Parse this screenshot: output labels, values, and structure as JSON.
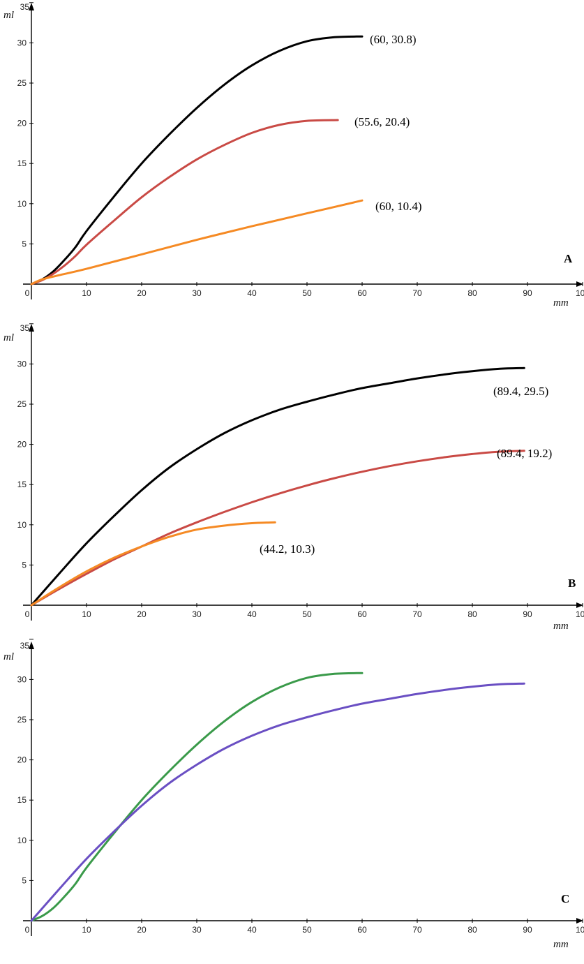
{
  "chart_data": [
    {
      "type": "line",
      "panel_label": "A",
      "xlabel": "mm",
      "ylabel": "ml",
      "xlim": [
        0,
        100
      ],
      "ylim": [
        0,
        35
      ],
      "xticks": [
        "0",
        "10",
        "20",
        "30",
        "40",
        "50",
        "60",
        "70",
        "80",
        "90",
        "100"
      ],
      "yticks": [
        "5",
        "10",
        "15",
        "20",
        "25",
        "30",
        "35"
      ],
      "series": [
        {
          "color": "#000000",
          "x": [
            0,
            2,
            4,
            6,
            8,
            10,
            15,
            20,
            25,
            30,
            35,
            40,
            45,
            50,
            55,
            60
          ],
          "y": [
            0,
            0.6,
            1.6,
            3.0,
            4.6,
            6.6,
            10.9,
            15.0,
            18.6,
            21.9,
            24.8,
            27.2,
            29.0,
            30.2,
            30.7,
            30.8
          ]
        },
        {
          "color": "#c94a45",
          "x": [
            0,
            2,
            4,
            6,
            8,
            10,
            15,
            20,
            25,
            30,
            35,
            40,
            45,
            50,
            55.6
          ],
          "y": [
            0,
            0.5,
            1.3,
            2.3,
            3.5,
            4.9,
            7.9,
            10.8,
            13.3,
            15.5,
            17.3,
            18.8,
            19.8,
            20.3,
            20.4
          ]
        },
        {
          "color": "#f58a24",
          "x": [
            0,
            2,
            5,
            10,
            20,
            30,
            40,
            50,
            60
          ],
          "y": [
            0,
            0.6,
            1.1,
            1.9,
            3.7,
            5.5,
            7.2,
            8.8,
            10.4
          ]
        }
      ],
      "annotations": [
        "(60, 30.8)",
        "(55.6, 20.4)",
        "(60, 10.4)"
      ]
    },
    {
      "type": "line",
      "panel_label": "B",
      "xlabel": "mm",
      "ylabel": "ml",
      "xlim": [
        0,
        100
      ],
      "ylim": [
        0,
        35
      ],
      "xticks": [
        "0",
        "10",
        "20",
        "30",
        "40",
        "50",
        "60",
        "70",
        "80",
        "90",
        "100"
      ],
      "yticks": [
        "5",
        "10",
        "15",
        "20",
        "25",
        "30",
        "35"
      ],
      "series": [
        {
          "color": "#000000",
          "x": [
            0,
            5,
            10,
            15,
            20,
            25,
            30,
            35,
            40,
            45,
            50,
            55,
            60,
            65,
            70,
            75,
            80,
            85,
            89.4
          ],
          "y": [
            0,
            3.9,
            7.7,
            11.1,
            14.3,
            17.1,
            19.4,
            21.4,
            23.0,
            24.3,
            25.3,
            26.2,
            27.0,
            27.6,
            28.2,
            28.7,
            29.1,
            29.4,
            29.5
          ]
        },
        {
          "color": "#c94a45",
          "x": [
            0,
            5,
            10,
            15,
            20,
            25,
            30,
            35,
            40,
            45,
            50,
            55,
            60,
            65,
            70,
            75,
            80,
            85,
            89.4
          ],
          "y": [
            0,
            2.0,
            3.9,
            5.7,
            7.3,
            8.9,
            10.3,
            11.6,
            12.8,
            13.9,
            14.9,
            15.8,
            16.6,
            17.3,
            17.9,
            18.4,
            18.8,
            19.1,
            19.2
          ]
        },
        {
          "color": "#f58a24",
          "x": [
            0,
            5,
            10,
            15,
            20,
            25,
            30,
            35,
            40,
            44.2
          ],
          "y": [
            0,
            2.2,
            4.2,
            5.9,
            7.3,
            8.5,
            9.4,
            9.9,
            10.2,
            10.3
          ]
        }
      ],
      "annotations": [
        "(89.4, 29.5)",
        "(89.4, 19.2)",
        "(44.2, 10.3)"
      ]
    },
    {
      "type": "line",
      "panel_label": "C",
      "xlabel": "mm",
      "ylabel": "ml",
      "xlim": [
        0,
        100
      ],
      "ylim": [
        0,
        35
      ],
      "xticks": [
        "0",
        "10",
        "20",
        "30",
        "40",
        "50",
        "60",
        "70",
        "80",
        "90",
        "100"
      ],
      "yticks": [
        "5",
        "10",
        "15",
        "20",
        "25",
        "30",
        "35"
      ],
      "series": [
        {
          "color": "#3a9a4a",
          "x": [
            0,
            2,
            4,
            6,
            8,
            10,
            15,
            20,
            25,
            30,
            35,
            40,
            45,
            50,
            55,
            60
          ],
          "y": [
            0,
            0.6,
            1.6,
            3.0,
            4.6,
            6.6,
            10.9,
            15.0,
            18.6,
            21.9,
            24.8,
            27.2,
            29.0,
            30.2,
            30.7,
            30.8
          ]
        },
        {
          "color": "#6a4fc3",
          "x": [
            0,
            5,
            10,
            15,
            20,
            25,
            30,
            35,
            40,
            45,
            50,
            55,
            60,
            65,
            70,
            75,
            80,
            85,
            89.4
          ],
          "y": [
            0,
            3.9,
            7.7,
            11.1,
            14.3,
            17.1,
            19.4,
            21.4,
            23.0,
            24.3,
            25.3,
            26.2,
            27.0,
            27.6,
            28.2,
            28.7,
            29.1,
            29.4,
            29.5
          ]
        }
      ],
      "annotations": []
    }
  ]
}
